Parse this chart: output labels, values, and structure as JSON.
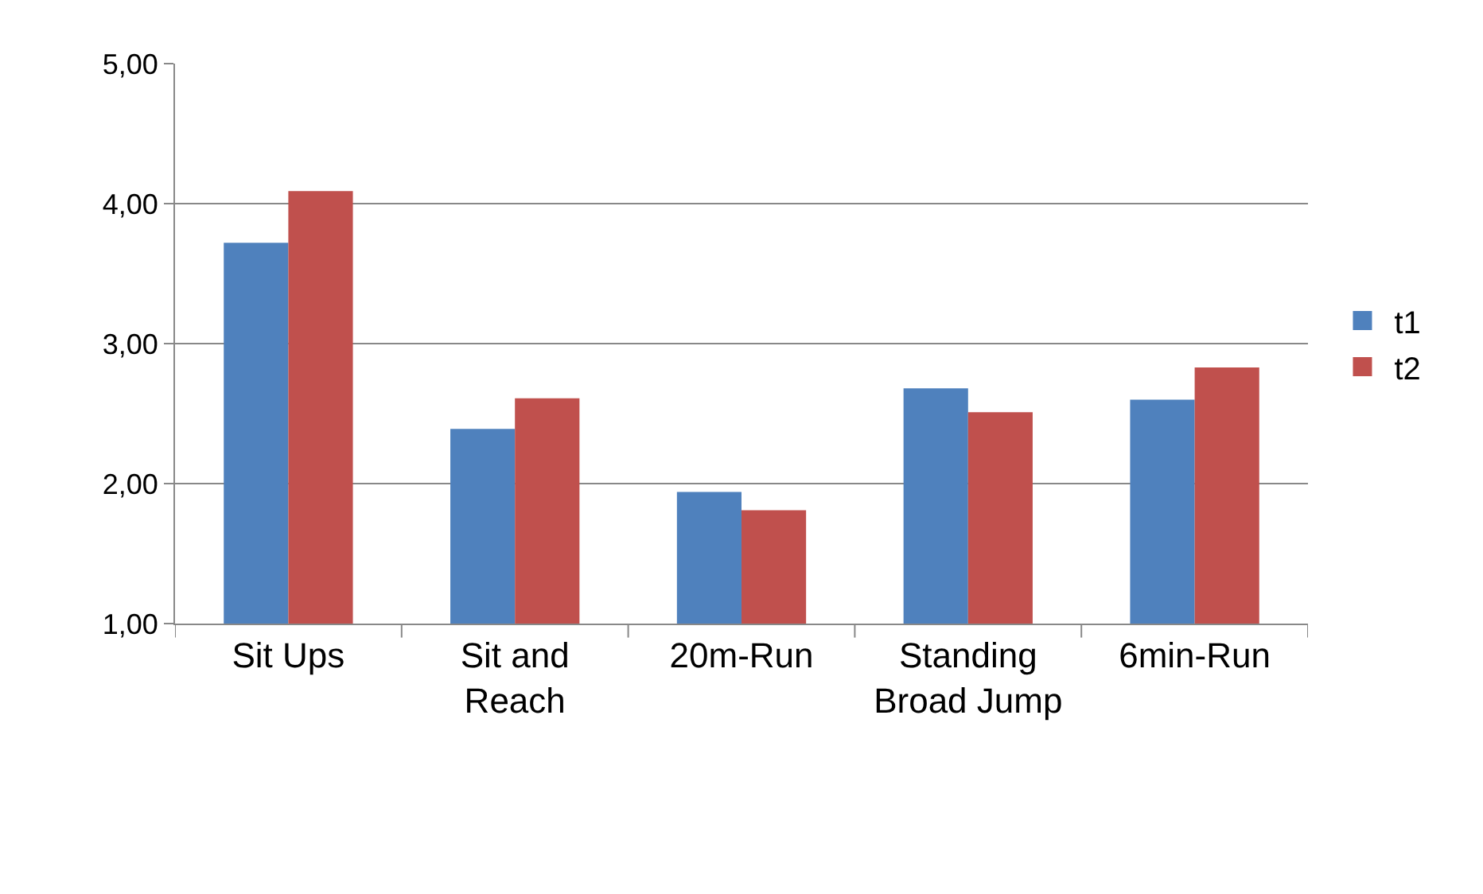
{
  "chart_data": {
    "type": "bar",
    "categories": [
      "Sit Ups",
      "Sit and Reach",
      "20m-Run",
      "Standing Broad Jump",
      "6min-Run"
    ],
    "series": [
      {
        "name": "t1",
        "color": "#4f81bd",
        "values": [
          3.72,
          2.39,
          1.94,
          2.68,
          2.6
        ]
      },
      {
        "name": "t2",
        "color": "#c0504d",
        "values": [
          4.09,
          2.61,
          1.81,
          2.51,
          2.83
        ]
      }
    ],
    "ylim": [
      1,
      5
    ],
    "yticks": [
      {
        "value": 1,
        "label": "1,00"
      },
      {
        "value": 2,
        "label": "2,00"
      },
      {
        "value": 3,
        "label": "3,00"
      },
      {
        "value": 4,
        "label": "4,00"
      },
      {
        "value": 5,
        "label": "5,00"
      }
    ],
    "grid": "y",
    "legend": "right"
  }
}
